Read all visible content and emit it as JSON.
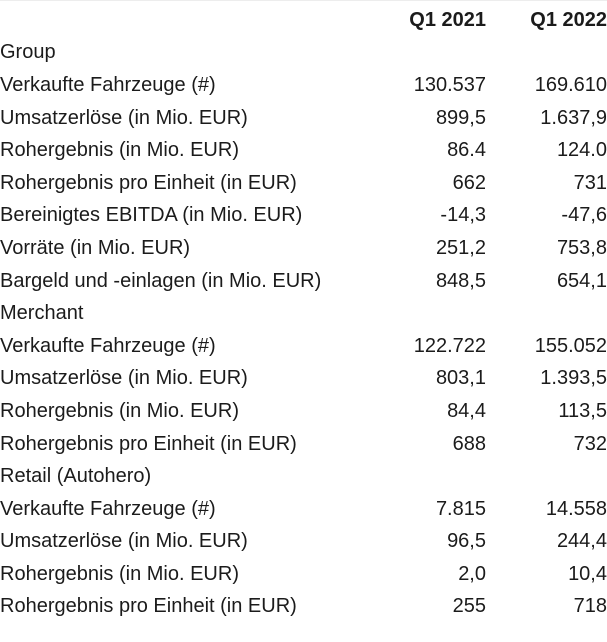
{
  "chart_data": {
    "type": "table",
    "columns": [
      "Q1 2021",
      "Q1 2022"
    ],
    "sections": [
      {
        "title": "Group",
        "rows": [
          {
            "label": "Verkaufte Fahrzeuge (#)",
            "values": [
              "130.537",
              "169.610"
            ]
          },
          {
            "label": "Umsatzerlöse (in Mio. EUR)",
            "values": [
              "899,5",
              "1.637,9"
            ]
          },
          {
            "label": "Rohergebnis (in Mio. EUR)",
            "values": [
              "86.4",
              "124.0"
            ]
          },
          {
            "label": "Rohergebnis pro Einheit (in EUR)",
            "values": [
              "662",
              "731"
            ]
          },
          {
            "label": "Bereinigtes EBITDA (in Mio. EUR)",
            "values": [
              "-14,3",
              "-47,6"
            ]
          },
          {
            "label": "Vorräte (in Mio. EUR)",
            "values": [
              "251,2",
              "753,8"
            ]
          },
          {
            "label": "Bargeld und -einlagen (in Mio. EUR)",
            "values": [
              "848,5",
              "654,1"
            ]
          }
        ]
      },
      {
        "title": "Merchant",
        "rows": [
          {
            "label": "Verkaufte Fahrzeuge (#)",
            "values": [
              "122.722",
              "155.052"
            ]
          },
          {
            "label": "Umsatzerlöse (in Mio. EUR)",
            "values": [
              "803,1",
              "1.393,5"
            ]
          },
          {
            "label": "Rohergebnis (in Mio. EUR)",
            "values": [
              "84,4",
              "113,5"
            ]
          },
          {
            "label": "Rohergebnis pro Einheit (in EUR)",
            "values": [
              "688",
              "732"
            ]
          }
        ]
      },
      {
        "title": "Retail (Autohero)",
        "rows": [
          {
            "label": "Verkaufte Fahrzeuge (#)",
            "values": [
              "7.815",
              "14.558"
            ]
          },
          {
            "label": "Umsatzerlöse (in Mio. EUR)",
            "values": [
              "96,5",
              "244,4"
            ]
          },
          {
            "label": "Rohergebnis (in Mio. EUR)",
            "values": [
              "2,0",
              "10,4"
            ]
          },
          {
            "label": "Rohergebnis pro Einheit (in EUR)",
            "values": [
              "255",
              "718"
            ]
          }
        ]
      }
    ]
  },
  "colors": {
    "text": "#1b1b1b",
    "background": "#ffffff",
    "top_rule": "#ededed"
  }
}
